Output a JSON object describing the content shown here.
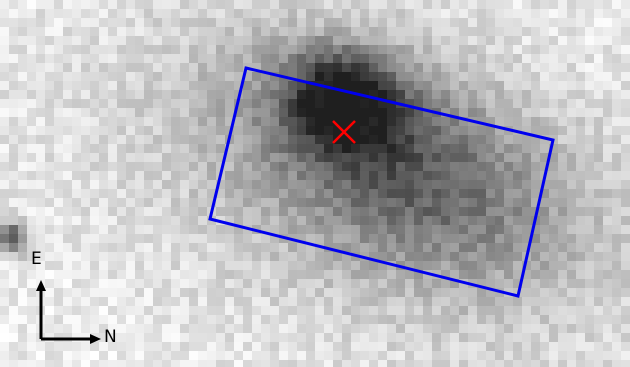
{
  "image": {
    "kind": "grayscale pixelated sky cutout",
    "background_color": "#eeeeee"
  },
  "overlays": {
    "slit_box": {
      "color": "#0000ee",
      "shape": "rotated-rectangle"
    },
    "target_marker": {
      "color": "#ff0000",
      "shape": "x-cross"
    }
  },
  "compass": {
    "east_label": "E",
    "north_label": "N",
    "arrow_color": "#000000"
  }
}
